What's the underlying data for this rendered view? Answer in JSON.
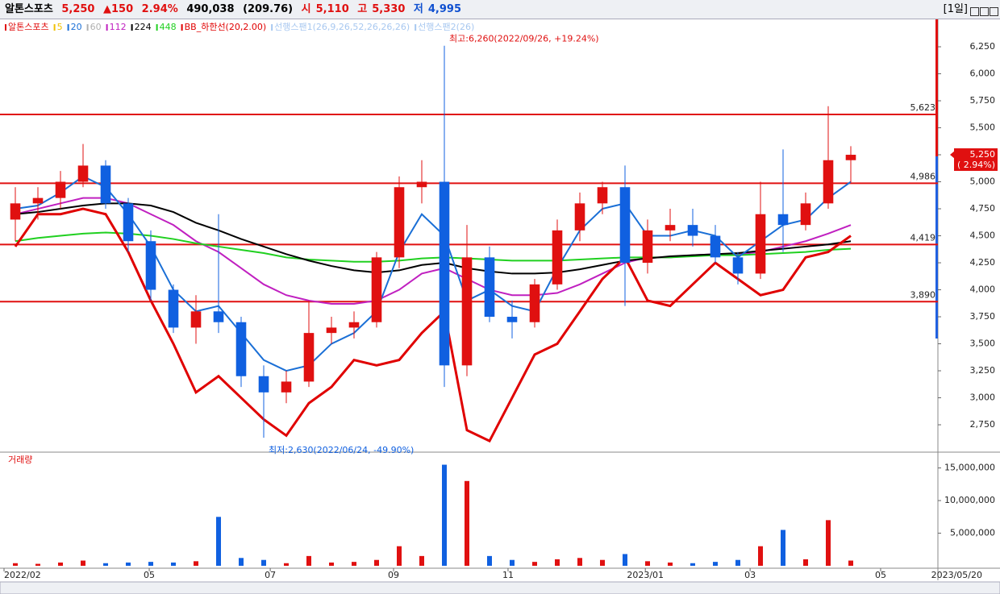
{
  "header": {
    "name": "알톤스포츠",
    "price": "5,250",
    "change": "▲150",
    "rate": "2.94%",
    "volume": "490,038",
    "amount": "(209.76)",
    "open_label": "시",
    "open": "5,110",
    "high_label": "고",
    "high": "5,330",
    "low_label": "저",
    "low": "4,995",
    "period": "[1일]"
  },
  "chart_data": [
    {
      "type": "candlestick",
      "legend": [
        {
          "name": "알톤스포츠",
          "color": "#e01010"
        },
        {
          "name": "5",
          "color": "#f0c000"
        },
        {
          "name": "20",
          "color": "#1a6fd6"
        },
        {
          "name": "60",
          "color": "#b0b0b0"
        },
        {
          "name": "112",
          "color": "#c020c0"
        },
        {
          "name": "224",
          "color": "#000000"
        },
        {
          "name": "448",
          "color": "#20d020"
        },
        {
          "name": "BB_하한선(20,2.00)",
          "color": "#e00000"
        },
        {
          "name": "선행스팬1(26,9,26,52,26,26,26)",
          "color": "#a8c8f0"
        },
        {
          "name": "선행스팬2(26)",
          "color": "#a8c8f0"
        }
      ],
      "up_color": "#e01010",
      "down_color": "#1060e0",
      "open": [
        4650,
        4800,
        4850,
        5000,
        5150,
        4800,
        4450,
        4000,
        3650,
        3800,
        3700,
        3200,
        3050,
        3150,
        3600,
        3650,
        3700,
        4300,
        4950,
        5000,
        3300,
        4300,
        3750,
        3700,
        4050,
        4550,
        4800,
        4950,
        4250,
        4550,
        4600,
        4500,
        4300,
        4150,
        4700,
        4600,
        4800,
        5200
      ],
      "high": [
        4950,
        4950,
        5100,
        5350,
        5200,
        4850,
        4550,
        4050,
        3950,
        4700,
        3750,
        3300,
        3250,
        3900,
        3750,
        3800,
        4350,
        5050,
        5200,
        6260,
        4600,
        4400,
        3900,
        4100,
        4650,
        4900,
        5000,
        5150,
        4650,
        4750,
        4750,
        4600,
        4350,
        5000,
        5300,
        4900,
        5700,
        5330
      ],
      "low": [
        4450,
        4650,
        4750,
        4950,
        4750,
        4350,
        3900,
        3600,
        3500,
        3600,
        3100,
        2630,
        2950,
        3100,
        3500,
        3550,
        3650,
        4200,
        4800,
        3100,
        3200,
        3700,
        3550,
        3650,
        4000,
        4450,
        4700,
        3850,
        4150,
        4450,
        4400,
        4250,
        4050,
        4100,
        4350,
        4550,
        4750,
        4995
      ],
      "close": [
        4800,
        4850,
        5000,
        5150,
        4800,
        4450,
        4000,
        3650,
        3800,
        3700,
        3200,
        3050,
        3150,
        3600,
        3650,
        3700,
        4300,
        4950,
        5000,
        3300,
        4300,
        3750,
        3700,
        4050,
        4550,
        4800,
        4950,
        4250,
        4550,
        4600,
        4500,
        4300,
        4150,
        4700,
        4600,
        4800,
        5200,
        5250
      ],
      "lines": [
        {
          "color": "#c020c0",
          "width": 2,
          "values": [
            4700,
            4750,
            4800,
            4850,
            4850,
            4800,
            4700,
            4600,
            4450,
            4350,
            4200,
            4050,
            3950,
            3900,
            3870,
            3870,
            3900,
            4000,
            4150,
            4200,
            4100,
            4000,
            3950,
            3950,
            3970,
            4050,
            4150,
            4250,
            4300,
            4300,
            4320,
            4330,
            4330,
            4350,
            4400,
            4450,
            4520,
            4600
          ]
        },
        {
          "color": "#20d020",
          "width": 2,
          "values": [
            4450,
            4480,
            4500,
            4520,
            4530,
            4520,
            4500,
            4470,
            4430,
            4400,
            4370,
            4340,
            4300,
            4280,
            4270,
            4260,
            4260,
            4270,
            4290,
            4300,
            4290,
            4280,
            4270,
            4270,
            4270,
            4280,
            4290,
            4300,
            4300,
            4300,
            4310,
            4320,
            4320,
            4330,
            4340,
            4350,
            4370,
            4380
          ]
        },
        {
          "color": "#000000",
          "width": 2,
          "values": [
            4700,
            4720,
            4750,
            4780,
            4800,
            4800,
            4780,
            4720,
            4620,
            4550,
            4470,
            4400,
            4330,
            4270,
            4220,
            4180,
            4160,
            4180,
            4230,
            4250,
            4200,
            4170,
            4150,
            4150,
            4160,
            4190,
            4230,
            4270,
            4290,
            4310,
            4320,
            4330,
            4340,
            4360,
            4380,
            4400,
            4420,
            4450
          ]
        },
        {
          "color": "#1a6fd6",
          "width": 2,
          "values": [
            4750,
            4780,
            4900,
            5050,
            4950,
            4700,
            4400,
            4000,
            3800,
            3850,
            3600,
            3350,
            3250,
            3300,
            3500,
            3600,
            3800,
            4350,
            4700,
            4500,
            3900,
            4000,
            3850,
            3800,
            4200,
            4550,
            4750,
            4800,
            4500,
            4500,
            4550,
            4500,
            4300,
            4450,
            4600,
            4650,
            4850,
            5000
          ]
        },
        {
          "color": "#e00000",
          "width": 3,
          "values": [
            4400,
            4700,
            4700,
            4750,
            4700,
            4350,
            3900,
            3500,
            3050,
            3200,
            3000,
            2800,
            2650,
            2950,
            3100,
            3350,
            3300,
            3350,
            3600,
            3800,
            2700,
            2600,
            3000,
            3400,
            3500,
            3800,
            4100,
            4300,
            3900,
            3850,
            4050,
            4250,
            4100,
            3950,
            4000,
            4300,
            4350,
            4500
          ]
        }
      ],
      "levels": [
        {
          "value": 5623,
          "label": "5,623"
        },
        {
          "value": 4986,
          "label": "4,986"
        },
        {
          "value": 4419,
          "label": "4,419"
        },
        {
          "value": 3890,
          "label": "3,890"
        }
      ],
      "last_price": {
        "value": 5250,
        "label": "5,250"
      },
      "last_change": "( 2.94%)",
      "max_note": "최고:6,260(2022/09/26, +19.24%)",
      "min_note": "최저:2,630(2022/06/24, -49.90%)",
      "xlim": [
        -0.5,
        40.75
      ],
      "ylim": [
        2504,
        6504
      ],
      "yticks": [
        {
          "value": 2750,
          "label": "2,750"
        },
        {
          "value": 3000,
          "label": "3,000"
        },
        {
          "value": 3250,
          "label": "3,250"
        },
        {
          "value": 3500,
          "label": "3,500"
        },
        {
          "value": 3750,
          "label": "3,750"
        },
        {
          "value": 4000,
          "label": "4,000"
        },
        {
          "value": 4250,
          "label": "4,250"
        },
        {
          "value": 4500,
          "label": "4,500"
        },
        {
          "value": 4750,
          "label": "4,750"
        },
        {
          "value": 5000,
          "label": "5,000"
        },
        {
          "value": 5250,
          "label": "5,250"
        },
        {
          "value": 5500,
          "label": "5,500"
        },
        {
          "value": 5750,
          "label": "5,750"
        },
        {
          "value": 6000,
          "label": "6,000"
        },
        {
          "value": 6250,
          "label": "6,250"
        }
      ],
      "xticks": [
        {
          "value": -0.5,
          "label": "2022/02"
        },
        {
          "value": 5.93,
          "label": "05"
        },
        {
          "value": 11.29,
          "label": "07"
        },
        {
          "value": 16.75,
          "label": "09"
        },
        {
          "value": 21.82,
          "label": "11"
        },
        {
          "value": 27.9,
          "label": "2023/01"
        },
        {
          "value": 32.54,
          "label": "03"
        },
        {
          "value": 38.32,
          "label": "05"
        }
      ],
      "end_date": "2023/05/20"
    },
    {
      "type": "bar",
      "title": "거래량",
      "values": [
        400000,
        300000,
        500000,
        800000,
        400000,
        500000,
        600000,
        500000,
        700000,
        7500000,
        1200000,
        900000,
        400000,
        1500000,
        500000,
        600000,
        900000,
        3000000,
        1500000,
        15500000,
        13000000,
        1500000,
        900000,
        600000,
        1000000,
        1200000,
        900000,
        1800000,
        700000,
        500000,
        400000,
        600000,
        900000,
        3000000,
        5500000,
        1000000,
        7000000,
        800000
      ],
      "ylim": [
        0,
        17300000
      ],
      "yticks": [
        {
          "value": 5000000,
          "label": "5,000,000"
        },
        {
          "value": 10000000,
          "label": "10,000,000"
        },
        {
          "value": 15000000,
          "label": "15,000,000"
        }
      ]
    }
  ]
}
